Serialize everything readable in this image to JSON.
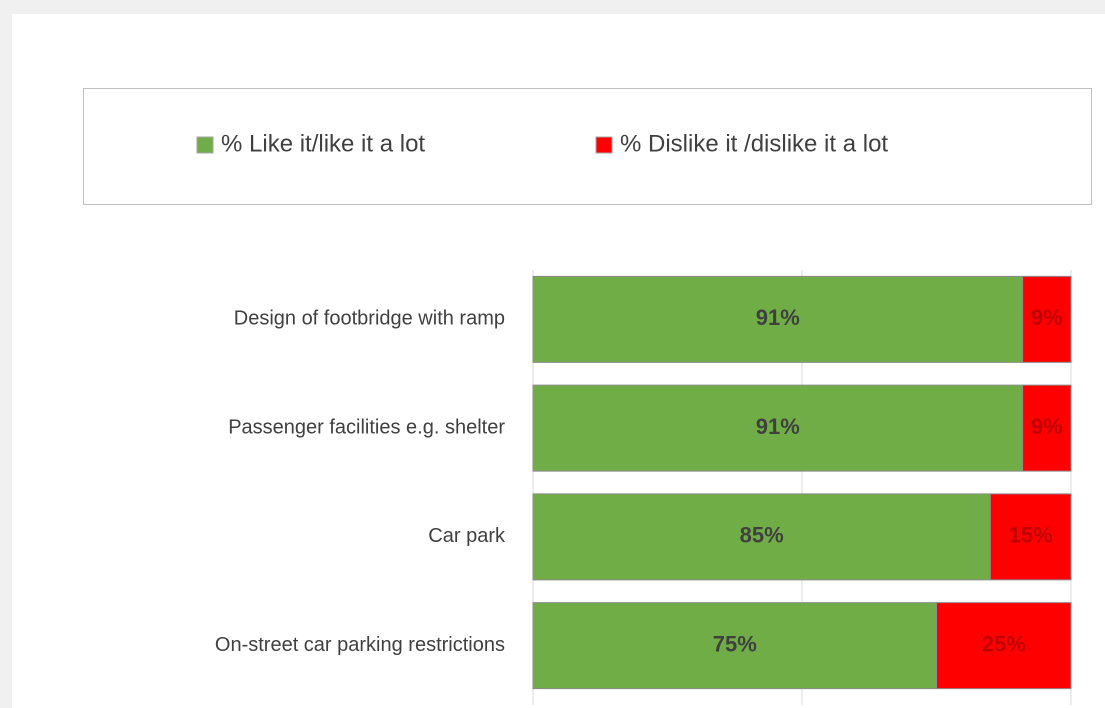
{
  "chart_data": {
    "type": "stacked-barh",
    "categories": [
      "Design of footbridge with ramp",
      "Passenger facilities e.g. shelter",
      "Car park",
      "On-street car parking restrictions"
    ],
    "series": [
      {
        "name": "% Like it/like it a lot",
        "color": "#70ad47",
        "label_color": "#404040",
        "values": [
          91,
          91,
          85,
          75
        ],
        "value_labels": [
          "91%",
          "91%",
          "85%",
          "75%"
        ]
      },
      {
        "name": "% Dislike it /dislike it a lot",
        "color": "#ff0000",
        "label_color": "#c00000",
        "values": [
          9,
          9,
          15,
          25
        ],
        "value_labels": [
          "9%",
          "9%",
          "15%",
          "25%"
        ]
      }
    ],
    "xlim": [
      0,
      100
    ],
    "xticks": [
      0,
      50,
      100
    ],
    "grid": true,
    "legend": "top"
  }
}
